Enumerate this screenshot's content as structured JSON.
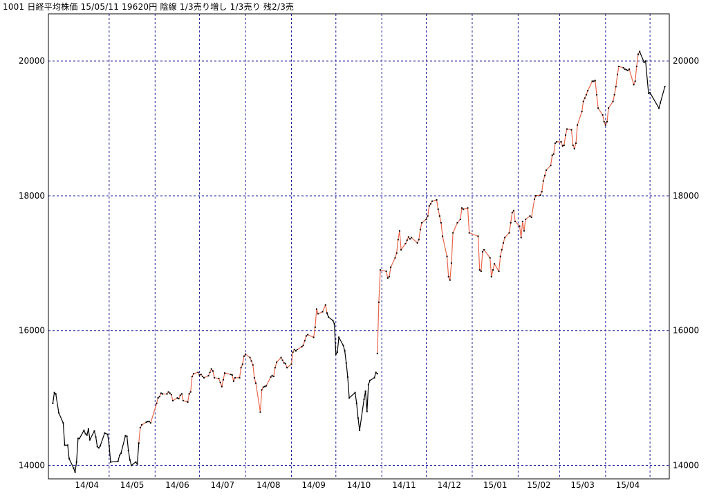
{
  "header": {
    "text": "1001 日経平均株価 15/05/11 19620円 陰線 1/3売り増し 1/3売り 残2/3売"
  },
  "chart_data": {
    "type": "line",
    "title": "",
    "xlabel": "",
    "ylabel": "",
    "ylim": [
      13800,
      20700
    ],
    "y_ticks": [
      14000,
      16000,
      18000,
      20000
    ],
    "x_ticks": [
      "14/04",
      "14/05",
      "14/06",
      "14/07",
      "14/08",
      "14/09",
      "14/10",
      "14/11",
      "14/12",
      "15/01",
      "15/02",
      "15/03",
      "15/04"
    ],
    "grid": true,
    "colors": {
      "up": "#e8654a",
      "down": "#000000",
      "grid": "#1a1a99",
      "axis": "#000000"
    },
    "series": [
      {
        "segment": "down",
        "x": [
          "2014-03-24",
          "2014-03-25",
          "2014-03-26",
          "2014-03-28",
          "2014-03-31",
          "2014-04-01",
          "2014-04-03",
          "2014-04-04",
          "2014-04-07",
          "2014-04-08",
          "2014-04-09",
          "2014-04-10",
          "2014-04-11",
          "2014-04-14",
          "2014-04-15",
          "2014-04-16",
          "2014-04-17",
          "2014-04-18",
          "2014-04-21",
          "2014-04-22",
          "2014-04-23",
          "2014-04-24",
          "2014-04-25",
          "2014-04-28",
          "2014-04-30",
          "2014-05-01",
          "2014-05-02",
          "2014-05-07",
          "2014-05-08",
          "2014-05-09",
          "2014-05-12",
          "2014-05-13",
          "2014-05-14",
          "2014-05-15",
          "2014-05-16",
          "2014-05-19",
          "2014-05-20",
          "2014-05-21"
        ],
        "y": [
          14920,
          15080,
          15060,
          14780,
          14630,
          14300,
          14300,
          14100,
          13960,
          13900,
          14050,
          14400,
          14400,
          14520,
          14470,
          14450,
          14540,
          14380,
          14510,
          14420,
          14280,
          14260,
          14290,
          14480,
          14460,
          14290,
          14050,
          14060,
          14150,
          14180,
          14440,
          14430,
          14220,
          14080,
          14000,
          14050,
          14020,
          14330
        ]
      },
      {
        "segment": "up",
        "x": [
          "2014-05-21",
          "2014-05-22",
          "2014-05-23",
          "2014-05-26",
          "2014-05-27",
          "2014-05-28",
          "2014-05-29",
          "2014-06-02",
          "2014-06-03",
          "2014-06-04",
          "2014-06-05",
          "2014-06-06",
          "2014-06-09",
          "2014-06-10",
          "2014-06-11",
          "2014-06-12",
          "2014-06-13",
          "2014-06-16",
          "2014-06-17",
          "2014-06-18",
          "2014-06-19",
          "2014-06-20",
          "2014-06-23",
          "2014-06-24",
          "2014-06-25",
          "2014-06-26",
          "2014-06-27",
          "2014-06-30",
          "2014-07-01",
          "2014-07-02",
          "2014-07-03",
          "2014-07-04",
          "2014-07-07",
          "2014-07-08",
          "2014-07-09",
          "2014-07-10",
          "2014-07-11",
          "2014-07-14",
          "2014-07-15",
          "2014-07-16",
          "2014-07-17",
          "2014-07-18",
          "2014-07-22",
          "2014-07-23",
          "2014-07-24",
          "2014-07-25",
          "2014-07-28",
          "2014-07-29",
          "2014-07-30",
          "2014-07-31",
          "2014-08-01",
          "2014-08-04",
          "2014-08-05",
          "2014-08-06",
          "2014-08-07",
          "2014-08-08",
          "2014-08-11",
          "2014-08-12",
          "2014-08-13",
          "2014-08-14",
          "2014-08-15",
          "2014-08-18",
          "2014-08-19",
          "2014-08-20",
          "2014-08-21",
          "2014-08-22",
          "2014-08-25",
          "2014-08-26",
          "2014-08-27",
          "2014-08-28",
          "2014-08-29",
          "2014-09-01",
          "2014-09-02",
          "2014-09-03",
          "2014-09-04",
          "2014-09-05",
          "2014-09-08",
          "2014-09-09",
          "2014-09-10",
          "2014-09-11",
          "2014-09-12",
          "2014-09-16",
          "2014-09-17",
          "2014-09-18",
          "2014-09-19",
          "2014-09-22",
          "2014-09-24",
          "2014-09-25"
        ],
        "y": [
          14330,
          14560,
          14600,
          14640,
          14650,
          14650,
          14630,
          14920,
          15000,
          15020,
          15070,
          15060,
          15060,
          15090,
          15070,
          15050,
          14960,
          15000,
          14990,
          15040,
          15060,
          14960,
          14940,
          15060,
          15090,
          15320,
          15360,
          15380,
          15340,
          15350,
          15320,
          15300,
          15330,
          15380,
          15430,
          15400,
          15300,
          15290,
          15230,
          15170,
          15270,
          15370,
          15350,
          15340,
          15250,
          15300,
          15300,
          15450,
          15500,
          15620,
          15650,
          15600,
          15550,
          15490,
          15300,
          15220,
          14790,
          15120,
          15160,
          15170,
          15180,
          15310,
          15330,
          15320,
          15450,
          15530,
          15600,
          15560,
          15520,
          15510,
          15450,
          15500,
          15680,
          15720,
          15700,
          15720,
          15760,
          15780,
          15850,
          15920,
          15940,
          15900,
          16050,
          16320,
          16250,
          16280,
          16380,
          16260
        ]
      },
      {
        "segment": "down",
        "x": [
          "2014-09-25",
          "2014-09-26",
          "2014-09-29",
          "2014-09-30",
          "2014-10-01",
          "2014-10-02",
          "2014-10-03",
          "2014-10-06",
          "2014-10-07",
          "2014-10-08",
          "2014-10-09",
          "2014-10-10",
          "2014-10-14",
          "2014-10-15",
          "2014-10-16",
          "2014-10-17",
          "2014-10-20",
          "2014-10-21",
          "2014-10-22",
          "2014-10-23",
          "2014-10-24",
          "2014-10-27",
          "2014-10-28",
          "2014-10-29"
        ],
        "y": [
          16260,
          16200,
          16150,
          16100,
          15650,
          15680,
          15900,
          15780,
          15700,
          15520,
          15310,
          15000,
          15080,
          14920,
          14700,
          14520,
          14980,
          15100,
          14800,
          15200,
          15260,
          15300,
          15380,
          15360
        ]
      },
      {
        "segment": "up",
        "x": [
          "2014-10-29",
          "2014-10-30",
          "2014-10-31",
          "2014-11-04",
          "2014-11-05",
          "2014-11-06",
          "2014-11-07",
          "2014-11-10",
          "2014-11-11",
          "2014-11-12",
          "2014-11-13",
          "2014-11-14",
          "2014-11-17",
          "2014-11-18",
          "2014-11-19",
          "2014-11-20",
          "2014-11-21",
          "2014-11-25",
          "2014-11-26",
          "2014-11-27",
          "2014-11-28",
          "2014-12-01",
          "2014-12-02",
          "2014-12-03",
          "2014-12-04",
          "2014-12-05",
          "2014-12-08",
          "2014-12-09",
          "2014-12-10",
          "2014-12-11",
          "2014-12-12",
          "2014-12-15",
          "2014-12-16",
          "2014-12-17",
          "2014-12-18",
          "2014-12-19",
          "2014-12-22",
          "2014-12-24",
          "2014-12-25",
          "2014-12-26",
          "2014-12-29",
          "2014-12-30",
          "2015-01-05",
          "2015-01-06",
          "2015-01-07",
          "2015-01-08",
          "2015-01-09",
          "2015-01-13",
          "2015-01-14",
          "2015-01-15",
          "2015-01-16",
          "2015-01-19",
          "2015-01-20",
          "2015-01-21",
          "2015-01-22",
          "2015-01-23",
          "2015-01-26",
          "2015-01-27",
          "2015-01-28",
          "2015-01-29",
          "2015-01-30",
          "2015-02-02",
          "2015-02-03",
          "2015-02-04",
          "2015-02-05",
          "2015-02-06",
          "2015-02-09",
          "2015-02-10",
          "2015-02-12",
          "2015-02-13",
          "2015-02-16",
          "2015-02-17",
          "2015-02-18",
          "2015-02-19",
          "2015-02-20",
          "2015-02-23",
          "2015-02-24",
          "2015-02-25",
          "2015-02-26",
          "2015-02-27",
          "2015-03-02",
          "2015-03-03",
          "2015-03-04",
          "2015-03-05",
          "2015-03-06",
          "2015-03-09",
          "2015-03-10",
          "2015-03-11",
          "2015-03-12",
          "2015-03-13",
          "2015-03-16",
          "2015-03-17",
          "2015-03-18",
          "2015-03-19",
          "2015-03-20",
          "2015-03-23",
          "2015-03-24",
          "2015-03-25",
          "2015-03-26",
          "2015-03-27",
          "2015-03-30",
          "2015-03-31",
          "2015-04-01",
          "2015-04-02",
          "2015-04-03",
          "2015-04-06",
          "2015-04-07",
          "2015-04-08",
          "2015-04-09",
          "2015-04-10",
          "2015-04-13",
          "2015-04-14",
          "2015-04-15",
          "2015-04-16",
          "2015-04-17",
          "2015-04-20",
          "2015-04-21",
          "2015-04-22",
          "2015-04-23",
          "2015-04-24"
        ],
        "y": [
          15660,
          16420,
          16900,
          16880,
          16780,
          16800,
          16940,
          17080,
          17150,
          17350,
          17480,
          17200,
          17290,
          17340,
          17390,
          17360,
          17380,
          17300,
          17350,
          17500,
          17600,
          17650,
          17700,
          17850,
          17880,
          17920,
          17940,
          17800,
          17700,
          17600,
          17400,
          17100,
          16800,
          16750,
          17000,
          17450,
          17600,
          17650,
          17820,
          17800,
          17820,
          17450,
          17400,
          16900,
          16880,
          17170,
          17200,
          17080,
          16800,
          16900,
          16990,
          16880,
          17100,
          17200,
          17300,
          17380,
          17450,
          17600,
          17750,
          17780,
          17620,
          17550,
          17380,
          17620,
          17480,
          17650,
          17700,
          17680,
          17950,
          18000,
          18010,
          18060,
          18220,
          18300,
          18380,
          18450,
          18600,
          18620,
          18780,
          18800,
          18800,
          18740,
          18750,
          18900,
          18990,
          18980,
          18750,
          18700,
          18780,
          19050,
          19250,
          19400,
          19450,
          19500,
          19560,
          19700,
          19700,
          19710,
          19500,
          19300,
          19200,
          19100,
          19050,
          19100,
          19300,
          19400,
          19500,
          19620,
          19800,
          19920,
          19900,
          19880,
          19870,
          19860,
          19880,
          19650,
          19700,
          19920,
          20100,
          20140
        ]
      },
      {
        "segment": "down",
        "x": [
          "2015-04-24",
          "2015-04-27",
          "2015-04-28",
          "2015-04-30",
          "2015-05-01",
          "2015-05-07",
          "2015-05-08",
          "2015-05-11"
        ],
        "y": [
          20140,
          19980,
          20000,
          19520,
          19530,
          19300,
          19380,
          19620
        ]
      }
    ]
  }
}
